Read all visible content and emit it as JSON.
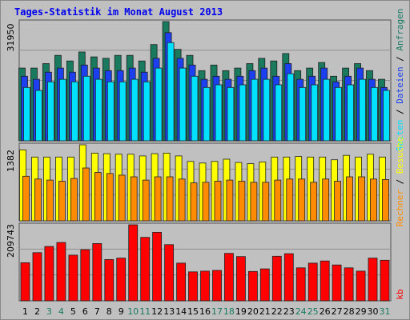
{
  "title": "Tages-Statistik im Monat August 2013",
  "colors": {
    "background": "#c0c0c0",
    "title": "#0000ee",
    "anfragen": "#1a7a5e",
    "dateien": "#1c3ff0",
    "seiten": "#00e0ff",
    "besuche": "#ffff00",
    "rechner": "#ff8c00",
    "kb": "#ff0000",
    "weekend_label": "#1a7a5e",
    "weekday_label": "#000000"
  },
  "side_labels": {
    "top": [
      "Anfragen",
      "Dateien",
      "Seiten"
    ],
    "middle": [
      "Besuche",
      "Rechner"
    ],
    "bottom": [
      "kb"
    ]
  },
  "chart_data": {
    "type": "bar",
    "title": "Tages-Statistik im Monat August 2013",
    "categories": [
      "1",
      "2",
      "3",
      "4",
      "5",
      "6",
      "7",
      "8",
      "9",
      "10",
      "11",
      "12",
      "13",
      "14",
      "15",
      "16",
      "17",
      "18",
      "19",
      "20",
      "21",
      "22",
      "23",
      "24",
      "25",
      "26",
      "27",
      "28",
      "29",
      "30",
      "31"
    ],
    "weekend_days": [
      3,
      4,
      10,
      11,
      17,
      18,
      24,
      25,
      31
    ],
    "panels": [
      {
        "name": "top",
        "ymax_label": "31950",
        "ylim": [
          0,
          31950
        ],
        "series": [
          {
            "name": "Anfragen",
            "values": [
              19500,
              19500,
              20700,
              22900,
              21400,
              23800,
              22500,
              22100,
              22900,
              22900,
              21400,
              25800,
              31950,
              24500,
              22900,
              18800,
              20300,
              18800,
              19500,
              20700,
              22100,
              21400,
              23400,
              18800,
              19500,
              21000,
              17300,
              19500,
              20700,
              18800,
              16500
            ]
          },
          {
            "name": "Dateien",
            "values": [
              17300,
              16500,
              18400,
              19500,
              18400,
              20300,
              19500,
              18800,
              18800,
              19500,
              18400,
              22100,
              29000,
              22100,
              20300,
              16500,
              17300,
              16500,
              17300,
              18800,
              19500,
              17300,
              20700,
              16500,
              17300,
              19500,
              15800,
              17300,
              19500,
              16500,
              14300
            ]
          },
          {
            "name": "Seiten",
            "values": [
              14300,
              13500,
              15800,
              16500,
              15800,
              17300,
              16500,
              15800,
              15800,
              16500,
              15800,
              19500,
              26300,
              19500,
              17300,
              14300,
              15000,
              14300,
              15000,
              16500,
              16500,
              15000,
              18000,
              14300,
              15000,
              16500,
              14300,
              15000,
              16500,
              14300,
              13500
            ]
          }
        ]
      },
      {
        "name": "middle",
        "ymax_label": "1382",
        "ylim": [
          0,
          1382
        ],
        "series": [
          {
            "name": "Besuche",
            "values": [
              1290,
              1160,
              1160,
              1160,
              1160,
              1382,
              1230,
              1220,
              1210,
              1210,
              1180,
              1220,
              1230,
              1180,
              1080,
              1050,
              1080,
              1120,
              1060,
              1040,
              1070,
              1160,
              1160,
              1170,
              1160,
              1160,
              1110,
              1190,
              1160,
              1210,
              1160
            ]
          },
          {
            "name": "Rechner",
            "values": [
              810,
              760,
              740,
              720,
              770,
              960,
              880,
              860,
              830,
              800,
              740,
              800,
              800,
              760,
              690,
              700,
              720,
              740,
              720,
              700,
              700,
              740,
              760,
              760,
              700,
              760,
              720,
              800,
              800,
              760,
              750
            ]
          }
        ]
      },
      {
        "name": "bottom",
        "ymax_label": "209743",
        "ylim": [
          0,
          209743
        ],
        "series": [
          {
            "name": "kb",
            "values": [
              105000,
              133000,
              150000,
              161000,
              126000,
              141000,
              158000,
              114000,
              118000,
              209743,
              175000,
              189000,
              155000,
              104000,
              80000,
              82000,
              84000,
              131000,
              122000,
              81000,
              88000,
              123000,
              130000,
              91000,
              104000,
              110000,
              99000,
              91000,
              82000,
              118000,
              112000
            ]
          }
        ]
      }
    ]
  }
}
